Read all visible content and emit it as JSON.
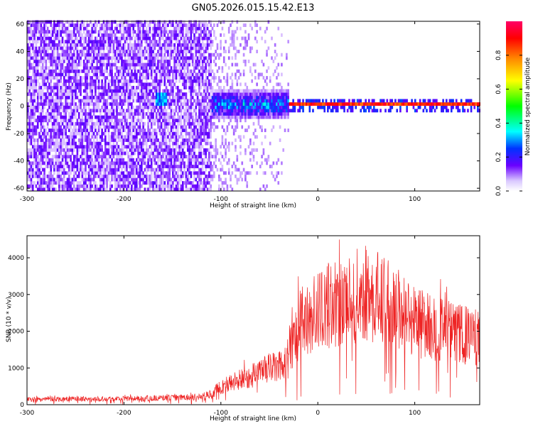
{
  "figure_title": "GN05.2026.015.15.42.E13",
  "chart_data": [
    {
      "type": "heatmap",
      "title": "",
      "xlabel": "Height of straight line (km)",
      "ylabel": "Frequency (Hz)",
      "xlim": [
        -300,
        167
      ],
      "ylim": [
        -62,
        62
      ],
      "x_ticks": [
        -300,
        -200,
        -100,
        0,
        100
      ],
      "y_ticks": [
        -60,
        -40,
        -20,
        0,
        20,
        40,
        60
      ],
      "colorbar": {
        "label": "Normalized spectral amplitude",
        "range": [
          0,
          1
        ],
        "ticks": [
          0.0,
          0.2,
          0.4,
          0.6,
          0.8
        ],
        "tick_labels": [
          "0.0",
          "0.2",
          "0.4",
          "0.6",
          "0.8"
        ],
        "colormap": [
          "#ffffff",
          "#6a00ff",
          "#0033ff",
          "#00ffff",
          "#00ff00",
          "#ffff00",
          "#ff8800",
          "#ff0000",
          "#ff0066"
        ]
      },
      "series": [
        {
          "x_range": [
            -300,
            -110
          ],
          "frequency_range": [
            -62,
            62
          ],
          "typical_amplitude": 0.05
        },
        {
          "x_range": [
            -110,
            -30
          ],
          "frequency_range": [
            -10,
            10
          ],
          "typical_amplitude": 0.3
        },
        {
          "x_range": [
            -30,
            167
          ],
          "frequency": 0,
          "typical_amplitude": 0.9
        },
        {
          "x": -162,
          "frequency": 3,
          "amplitude": 0.35
        }
      ]
    },
    {
      "type": "line",
      "title": "",
      "xlabel": "Height of straight line (km)",
      "ylabel": "SNR (10 * v/v)",
      "xlim": [
        -300,
        167
      ],
      "ylim": [
        0,
        4600
      ],
      "x_ticks": [
        -300,
        -200,
        -100,
        0,
        100
      ],
      "y_ticks": [
        0,
        1000,
        2000,
        3000,
        4000
      ],
      "color": "#ee2222",
      "series": [
        {
          "x": [
            -300,
            -250,
            -200,
            -150,
            -120,
            -110,
            -100,
            -80,
            -60,
            -40,
            -30,
            -25,
            -20,
            -10,
            0,
            10,
            20,
            30,
            40,
            50,
            60,
            70,
            80,
            90,
            100,
            120,
            140,
            167
          ],
          "values": [
            150,
            160,
            170,
            190,
            220,
            300,
            500,
            700,
            900,
            1100,
            1300,
            1900,
            2200,
            2450,
            2600,
            2750,
            2850,
            2950,
            3050,
            3100,
            3000,
            2900,
            2750,
            2550,
            2350,
            2150,
            2000,
            1850
          ]
        }
      ]
    }
  ]
}
